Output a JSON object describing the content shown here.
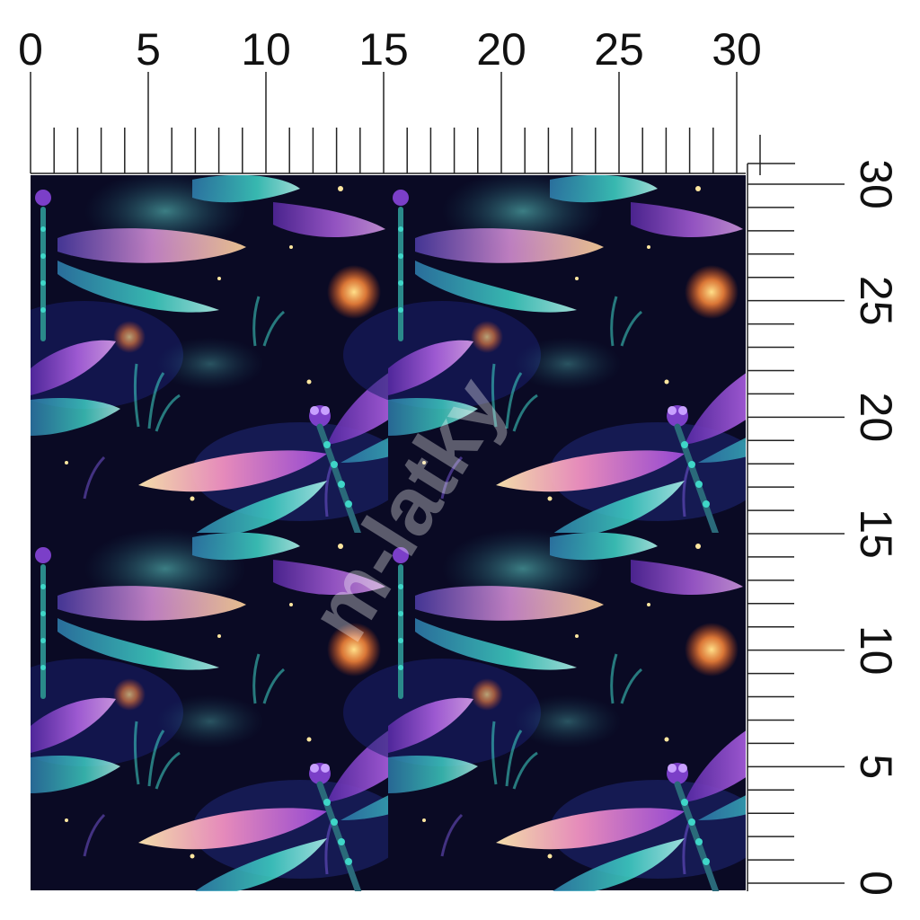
{
  "ruler": {
    "top_labels": [
      "0",
      "5",
      "10",
      "15",
      "20",
      "25",
      "30"
    ],
    "right_labels": [
      "30",
      "25",
      "20",
      "15",
      "10",
      "5",
      "0"
    ],
    "top_max": 30,
    "right_max": 30,
    "minor_step": 1
  },
  "pattern": {
    "description_colors": {
      "background": "#0a0a24",
      "deep_blue": "#1a1f6e",
      "purple": "#8a3fd1",
      "magenta": "#c45ae0",
      "teal": "#3fd6c8",
      "peach": "#ffc690",
      "orange_glow": "#ff8a3a"
    }
  },
  "watermark": {
    "text": "m-latky"
  }
}
